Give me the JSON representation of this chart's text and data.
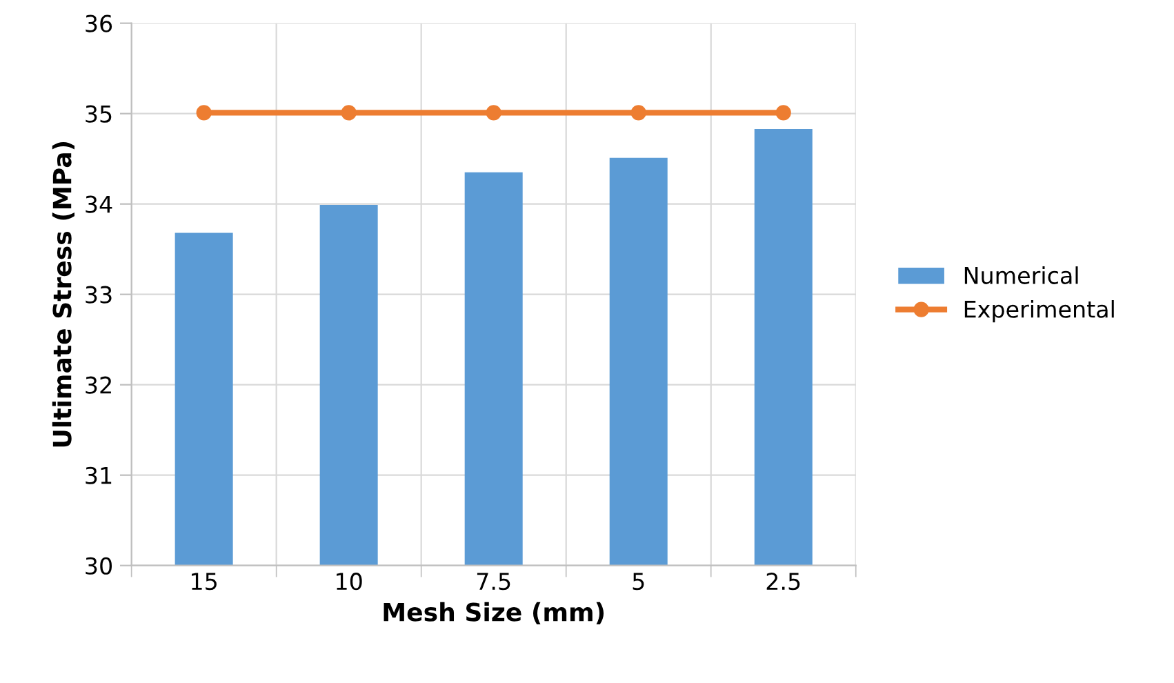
{
  "chart_data": {
    "type": "bar",
    "xlabel": "Mesh Size (mm)",
    "ylabel": "Ultimate Stress (MPa)",
    "categories": [
      "15",
      "10",
      "7.5",
      "5",
      "2.5"
    ],
    "series": [
      {
        "name": "Numerical",
        "color": "#5b9bd5",
        "values": [
          33.68,
          33.99,
          34.35,
          34.51,
          34.83
        ]
      },
      {
        "name": "Experimental",
        "type": "line",
        "color": "#ed7d31",
        "values": [
          35.01,
          35.01,
          35.01,
          35.01,
          35.01
        ]
      }
    ],
    "ylim": [
      30,
      36
    ],
    "yticks": [
      30,
      31,
      32,
      33,
      34,
      35,
      36
    ],
    "grid": true,
    "legend": "right",
    "marker": "circle",
    "line_style": "solid"
  }
}
